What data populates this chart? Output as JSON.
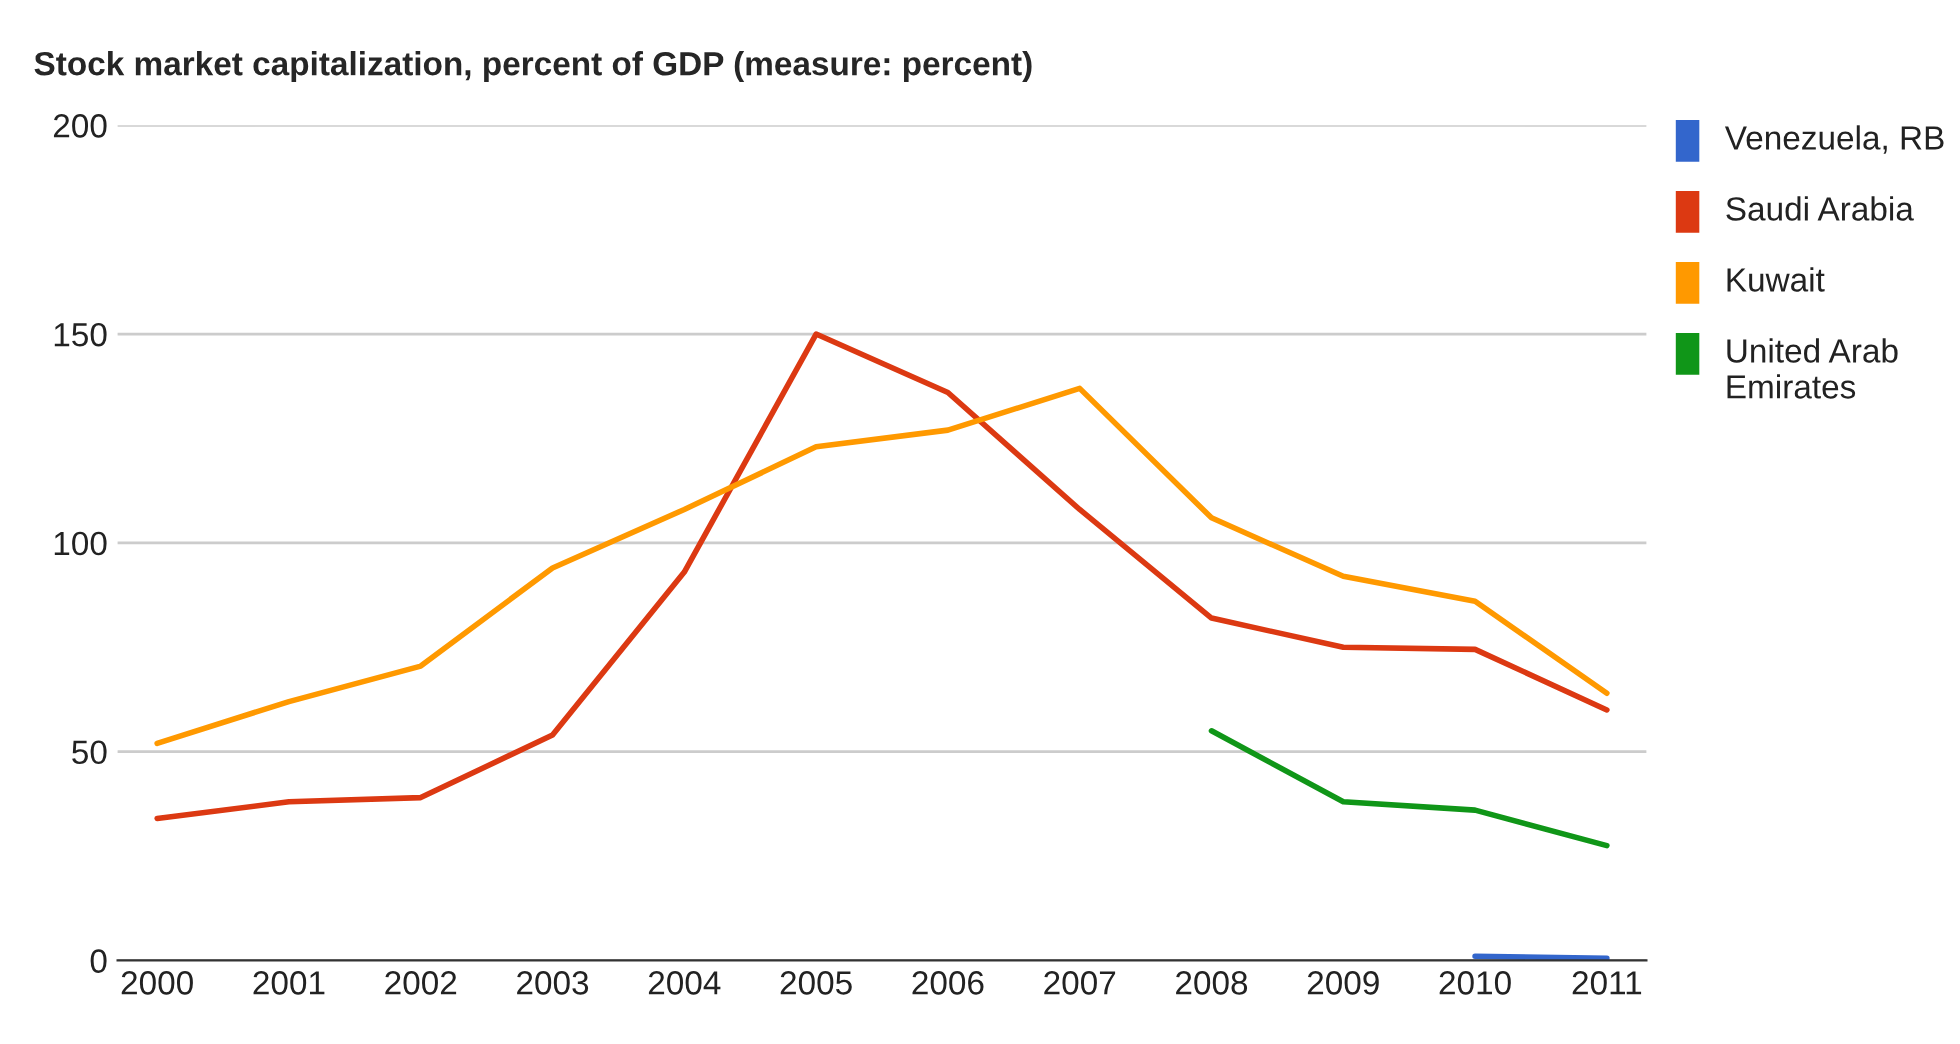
{
  "chart_data": {
    "type": "line",
    "title": "Stock market capitalization, percent of GDP (measure: percent)",
    "categories": [
      "2000",
      "2001",
      "2002",
      "2003",
      "2004",
      "2005",
      "2006",
      "2007",
      "2008",
      "2009",
      "2010",
      "2011"
    ],
    "series": [
      {
        "name": "Venezuela, RB",
        "color": "#3366cc",
        "values": [
          null,
          null,
          null,
          null,
          null,
          null,
          null,
          null,
          null,
          null,
          1,
          0.5
        ]
      },
      {
        "name": "Saudi Arabia",
        "color": "#dc3912",
        "values": [
          34,
          38,
          39,
          54,
          93,
          150,
          136,
          108,
          82,
          75,
          74.5,
          60
        ]
      },
      {
        "name": "Kuwait",
        "color": "#ff9900",
        "values": [
          52,
          62,
          70.5,
          94,
          108,
          123,
          127,
          137,
          106,
          92,
          86,
          64
        ]
      },
      {
        "name": "United Arab Emirates",
        "color": "#109618",
        "values": [
          null,
          null,
          null,
          null,
          null,
          null,
          null,
          null,
          55,
          38,
          36,
          27.5
        ]
      }
    ],
    "ylim": [
      0,
      200
    ],
    "yticks": [
      0,
      50,
      100,
      150,
      200
    ],
    "grid": "y",
    "legend": "right",
    "marker": "none",
    "line_style": "solid"
  }
}
